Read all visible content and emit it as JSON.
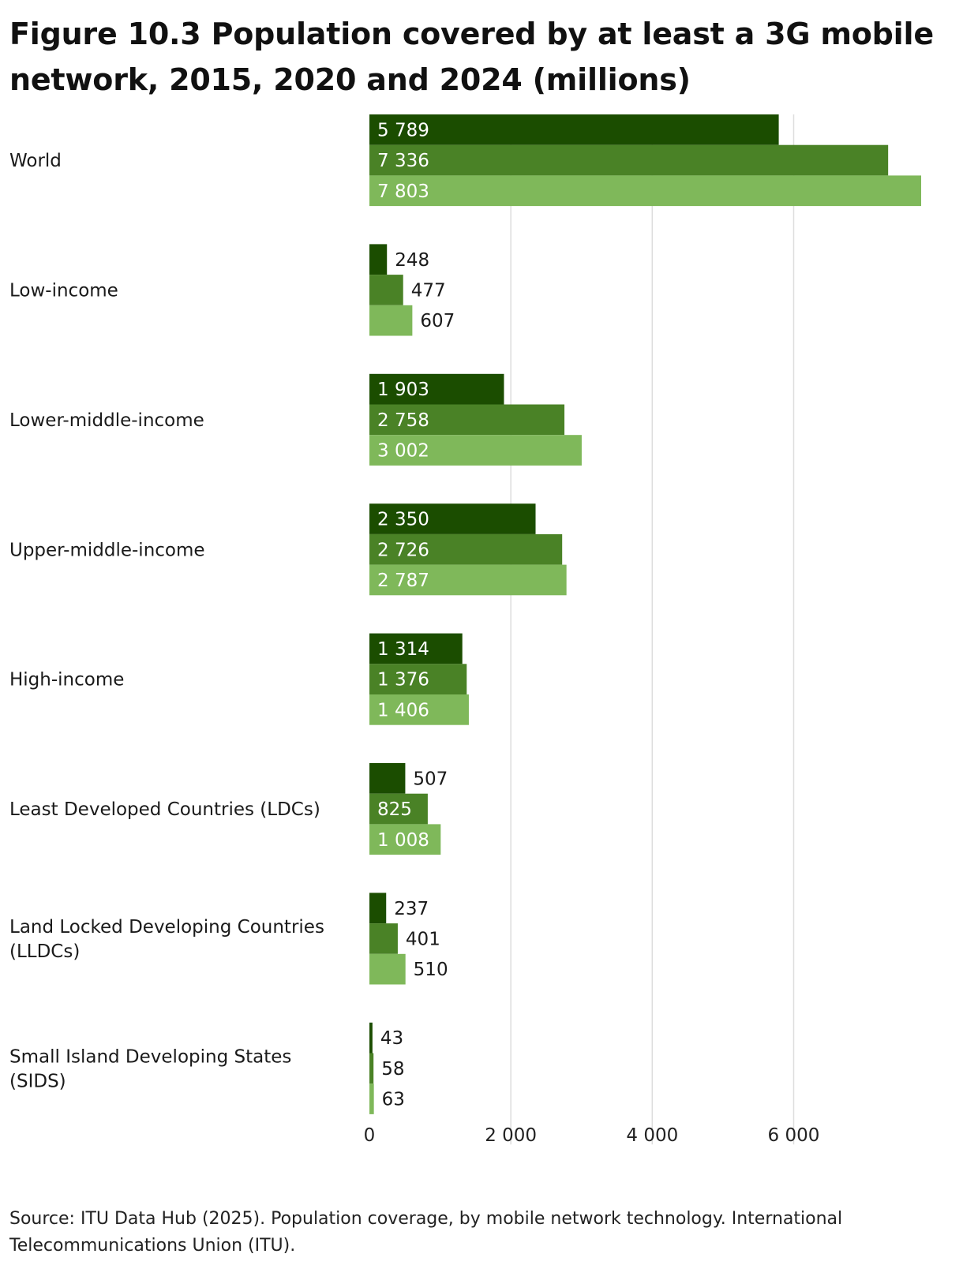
{
  "chart_data": {
    "type": "bar",
    "orientation": "horizontal",
    "title": "Figure 10.3 Population covered by at least a 3G mobile network, 2015, 2020 and 2024 (millions)",
    "categories": [
      "World",
      "Low-income",
      "Lower-middle-income",
      "Upper-middle-income",
      "High-income",
      "Least Developed Countries (LDCs)",
      "Land Locked Developing Countries (LLDCs)",
      "Small Island Developing States (SIDS)"
    ],
    "series": [
      {
        "color": "#1b4d00",
        "values": [
          5789,
          248,
          1903,
          2350,
          1314,
          507,
          237,
          43
        ]
      },
      {
        "color": "#4a8226",
        "values": [
          7336,
          477,
          2758,
          2726,
          1376,
          825,
          401,
          58
        ]
      },
      {
        "color": "#7fb85a",
        "values": [
          7803,
          607,
          3002,
          2787,
          1406,
          1008,
          510,
          63
        ]
      }
    ],
    "value_labels": [
      [
        "5 789",
        "248",
        "1 903",
        "2 350",
        "1 314",
        "507",
        "237",
        "43"
      ],
      [
        "7 336",
        "477",
        "2 758",
        "2 726",
        "1 376",
        "825",
        "401",
        "58"
      ],
      [
        "7 803",
        "607",
        "3 002",
        "2 787",
        "1 406",
        "1 008",
        "510",
        "63"
      ]
    ],
    "xlim": [
      0,
      7803
    ],
    "xticks": [
      0,
      2000,
      4000,
      6000
    ],
    "xtick_labels": [
      "0",
      "2 000",
      "4 000",
      "6 000"
    ],
    "grid": "vertical",
    "legend": "none",
    "source": "Source: ITU Data Hub (2025). Population coverage, by mobile network technology. International Telecommunications Union (ITU)."
  }
}
